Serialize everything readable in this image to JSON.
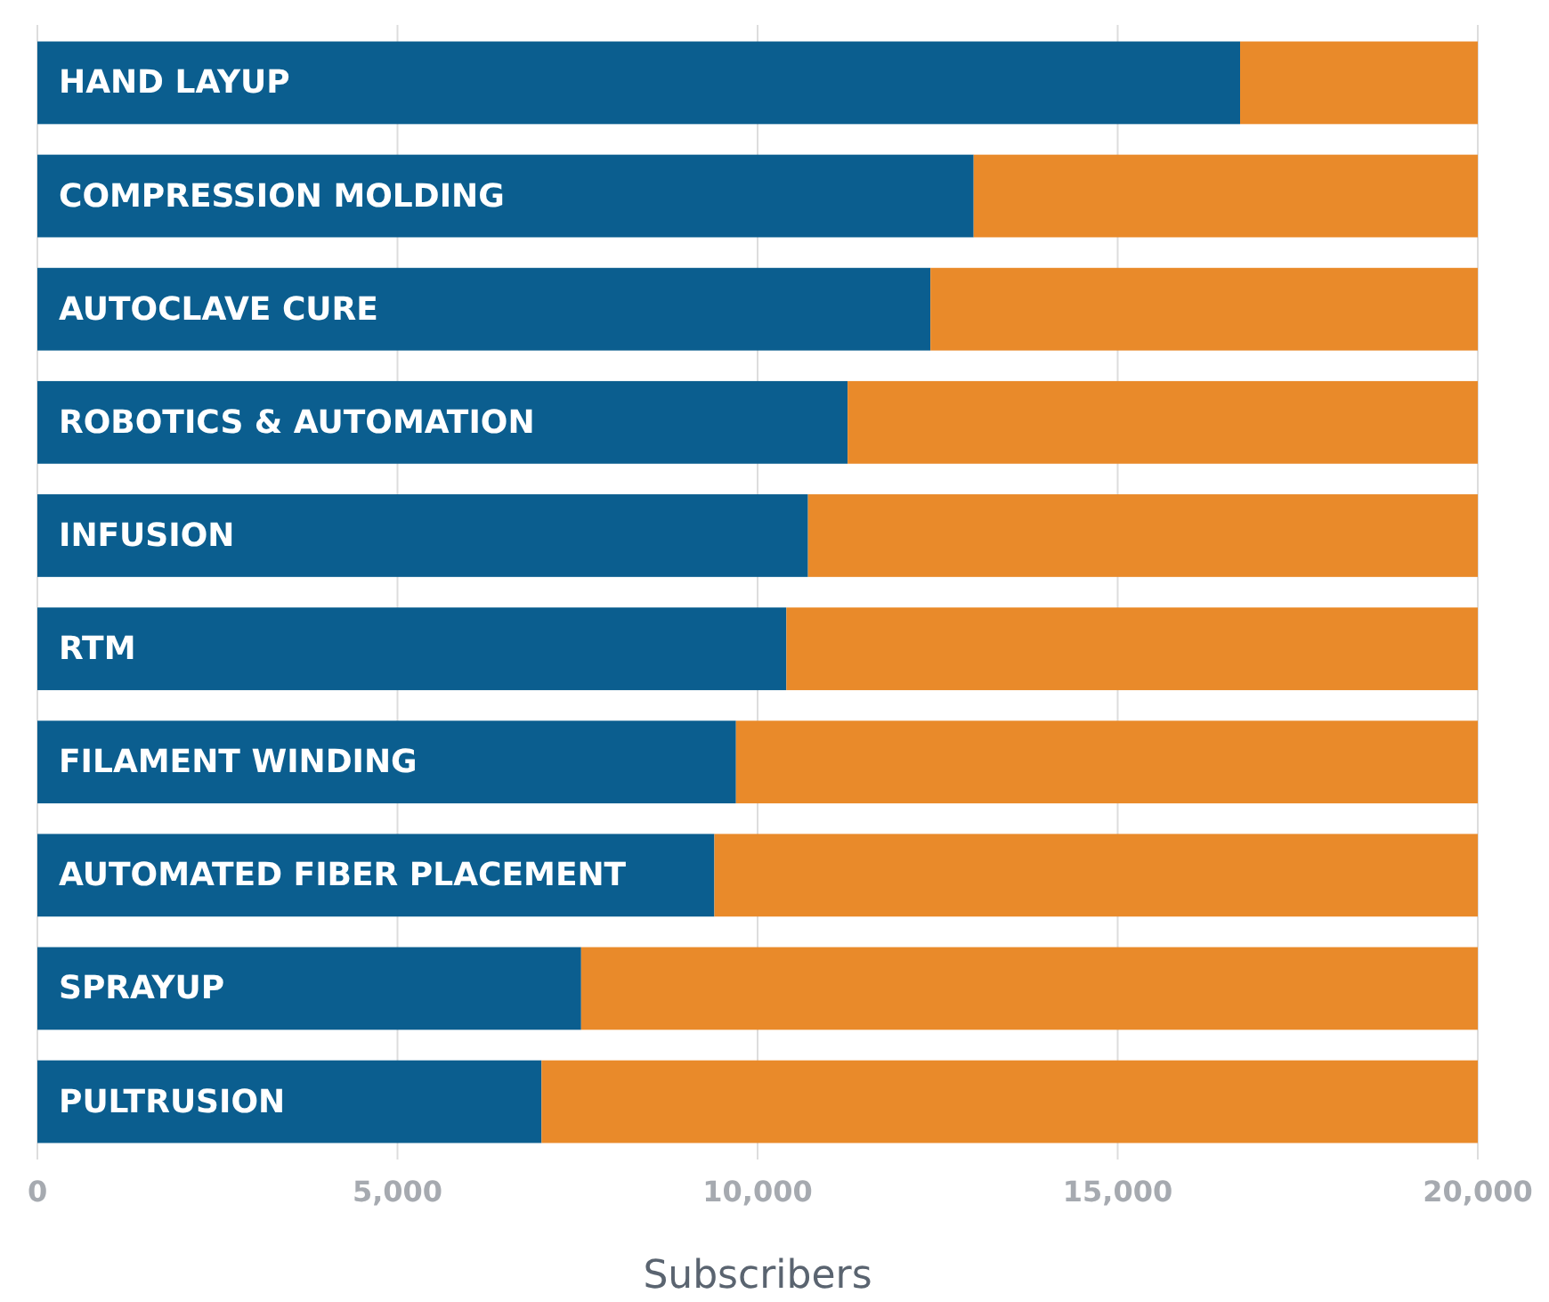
{
  "chart_data": {
    "type": "bar",
    "orientation": "horizontal",
    "stacked": true,
    "xlabel": "Subscribers",
    "categories": [
      "HAND LAYUP",
      "COMPRESSION MOLDING",
      "AUTOCLAVE CURE",
      "ROBOTICS & AUTOMATION",
      "INFUSION",
      "RTM",
      "FILAMENT WINDING",
      "AUTOMATED FIBER PLACEMENT",
      "SPRAYUP",
      "PULTRUSION"
    ],
    "series": [
      {
        "color": "#0b5e8f",
        "values": [
          16700,
          13000,
          12400,
          11250,
          10700,
          10400,
          9700,
          9400,
          7550,
          7000
        ]
      },
      {
        "color": "#e98a2a",
        "values": [
          3300,
          7000,
          7600,
          8750,
          9300,
          9600,
          10300,
          10600,
          12450,
          13000
        ]
      }
    ],
    "xlim": [
      0,
      20000
    ],
    "xticks": [
      0,
      {
        "value": 5000,
        "label": "5,000"
      },
      {
        "value": 10000,
        "label": "10,000"
      },
      {
        "value": 15000,
        "label": "15,000"
      },
      {
        "value": 20000,
        "label": "20,000"
      }
    ],
    "grid": "x"
  }
}
